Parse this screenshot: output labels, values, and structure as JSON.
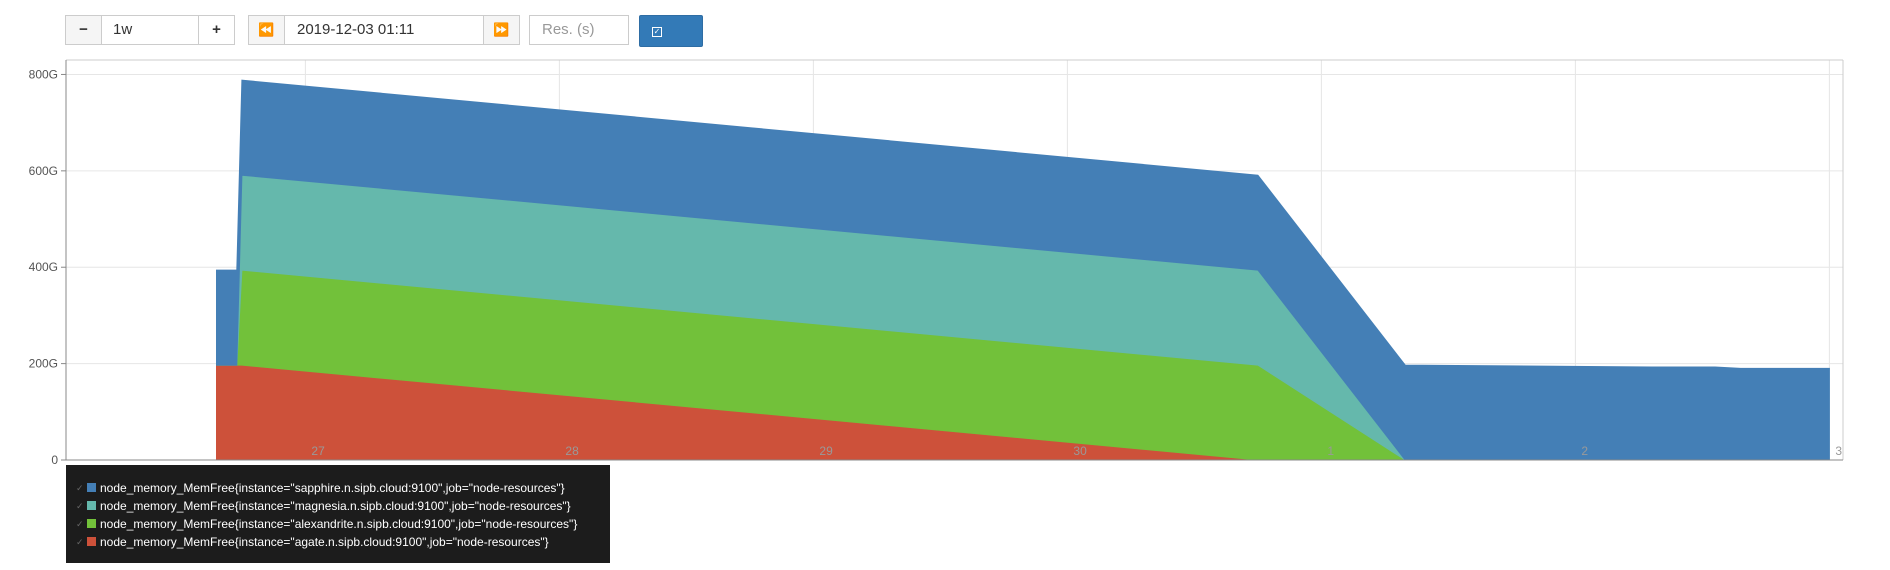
{
  "controls": {
    "minus_label": "−",
    "range_value": "1w",
    "plus_label": "+",
    "back_label": "⏪",
    "end_time": "2019-12-03 01:11",
    "forward_label": "⏩",
    "resolution_placeholder": "Res. (s)",
    "stacked_label": "stacked"
  },
  "colors": {
    "sapphire": "#447fb6",
    "magnesia": "#65b8ac",
    "alexandrite": "#72c13a",
    "agate": "#cd513a"
  },
  "chart_data": {
    "type": "area",
    "stacked": true,
    "x_tick_labels": [
      "27",
      "28",
      "29",
      "30",
      "1",
      "2",
      "3"
    ],
    "y_tick_labels": [
      "0",
      "200G",
      "400G",
      "600G",
      "800G"
    ],
    "ylim": [
      0,
      830
    ],
    "y_unit": "G",
    "grid": true,
    "x": [
      26.65,
      26.68,
      26.7,
      26.71,
      26.73,
      26.75,
      30.75,
      31.33,
      32.31,
      32.35,
      32.55,
      32.65,
      32.66,
      33.0
    ],
    "series": [
      {
        "name": "node_memory_MemFree{instance=\"sapphire.n.sipb.cloud:9100\",job=\"node-resources\"}",
        "color": "#447fb6",
        "values": [
          197,
          197,
          197,
          197,
          197,
          197,
          197,
          197,
          193,
          193,
          193,
          190,
          190,
          190
        ]
      },
      {
        "name": "node_memory_MemFree{instance=\"magnesia.n.sipb.cloud:9100\",job=\"node-resources\"}",
        "color": "#65b8ac",
        "values": [
          0,
          0,
          0,
          0,
          0,
          197,
          197,
          0,
          0,
          0,
          0,
          0,
          0,
          0
        ]
      },
      {
        "name": "node_memory_MemFree{instance=\"alexandrite.n.sipb.cloud:9100\",job=\"node-resources\"}",
        "color": "#72c13a",
        "values": [
          0,
          0,
          0,
          0,
          0,
          197,
          197,
          0,
          0,
          0,
          0,
          0,
          0,
          0
        ]
      },
      {
        "name": "node_memory_MemFree{instance=\"agate.n.sipb.cloud:9100\",job=\"node-resources\"}",
        "color": "#cd513a",
        "values": [
          197,
          197,
          197,
          197,
          197,
          197,
          0,
          0,
          0,
          0,
          0,
          0,
          0,
          0
        ]
      }
    ],
    "legend_position": "bottom-left"
  }
}
